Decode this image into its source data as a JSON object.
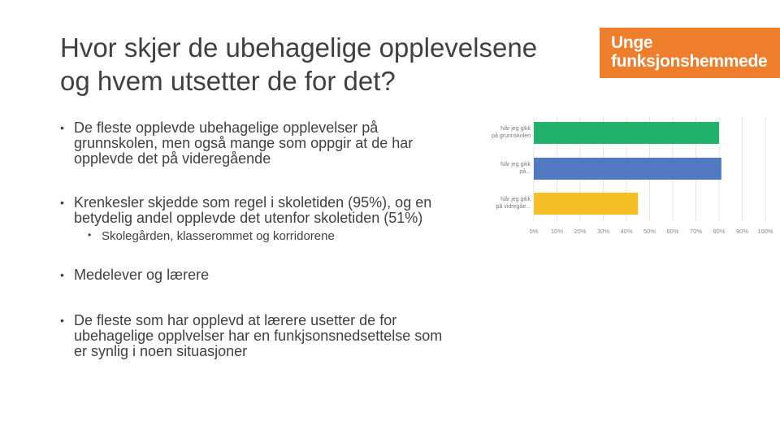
{
  "slide": {
    "title_line1": "Hvor skjer de ubehagelige opplevelsene",
    "title_line2": "og hvem utsetter de for det?"
  },
  "logo": {
    "line1": "Unge",
    "line2": "funksjonshemmede",
    "bg_color": "#ee7d2c"
  },
  "bullets": [
    {
      "lines": [
        "De fleste opplevde ubehagelige opplevelser på",
        "grunnskolen, men også mange som oppgir at de har",
        "opplevde det på videregående"
      ]
    },
    {
      "lines": [
        "Krenkesler skjedde som regel i skoletiden (95%), og en",
        "betydelig andel opplevde det utenfor skoletiden (51%)"
      ],
      "sub": "Skolegården, klasserommet og korridorene"
    },
    {
      "lines": [
        "Medelever og lærere"
      ]
    },
    {
      "lines": [
        "De fleste som har opplevd at lærere usetter de for",
        "ubehagelige opplvelser har en funkjsonsnedsettelse som",
        "er synlig i noen situasjoner"
      ]
    }
  ],
  "bullet_glyph": "•",
  "chart_data": {
    "type": "bar",
    "orientation": "horizontal",
    "categories": [
      [
        "Når jeg gikk",
        "på grunnskolen"
      ],
      [
        "Når jeg gikk",
        "på..."
      ],
      [
        "Når jeg gikk",
        "på vidregåe..."
      ]
    ],
    "values": [
      80,
      81,
      45
    ],
    "colors": [
      "#21b36b",
      "#5079c1",
      "#f6bf26"
    ],
    "xlim": [
      0,
      100
    ],
    "ticks": [
      "0%",
      "10%",
      "20%",
      "30%",
      "40%",
      "50%",
      "60%",
      "70%",
      "80%",
      "90%",
      "100%"
    ],
    "grid": true,
    "title": "",
    "xlabel": "",
    "ylabel": ""
  }
}
